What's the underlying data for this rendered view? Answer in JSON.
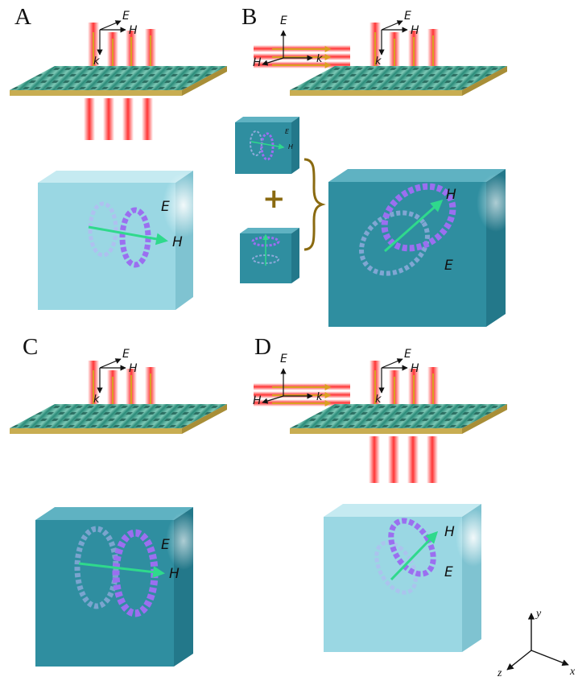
{
  "panels": [
    {
      "letter": "A"
    },
    {
      "letter": "B"
    },
    {
      "letter": "C"
    },
    {
      "letter": "D"
    }
  ],
  "field_labels": {
    "E": "E",
    "H": "H",
    "k": "k"
  },
  "plus_sign": "+",
  "axes": {
    "x": "x",
    "y": "y",
    "z": "z"
  },
  "colors": {
    "light_cube": "#9ad7e3",
    "dark_cube": "#2f8ea0",
    "slab": "#c8ad52",
    "slab_top": "#2f8f7a",
    "beam": "#ff2a2a",
    "arrow_green": "#2fd98c",
    "ring_purple": "#9b6ff0"
  }
}
